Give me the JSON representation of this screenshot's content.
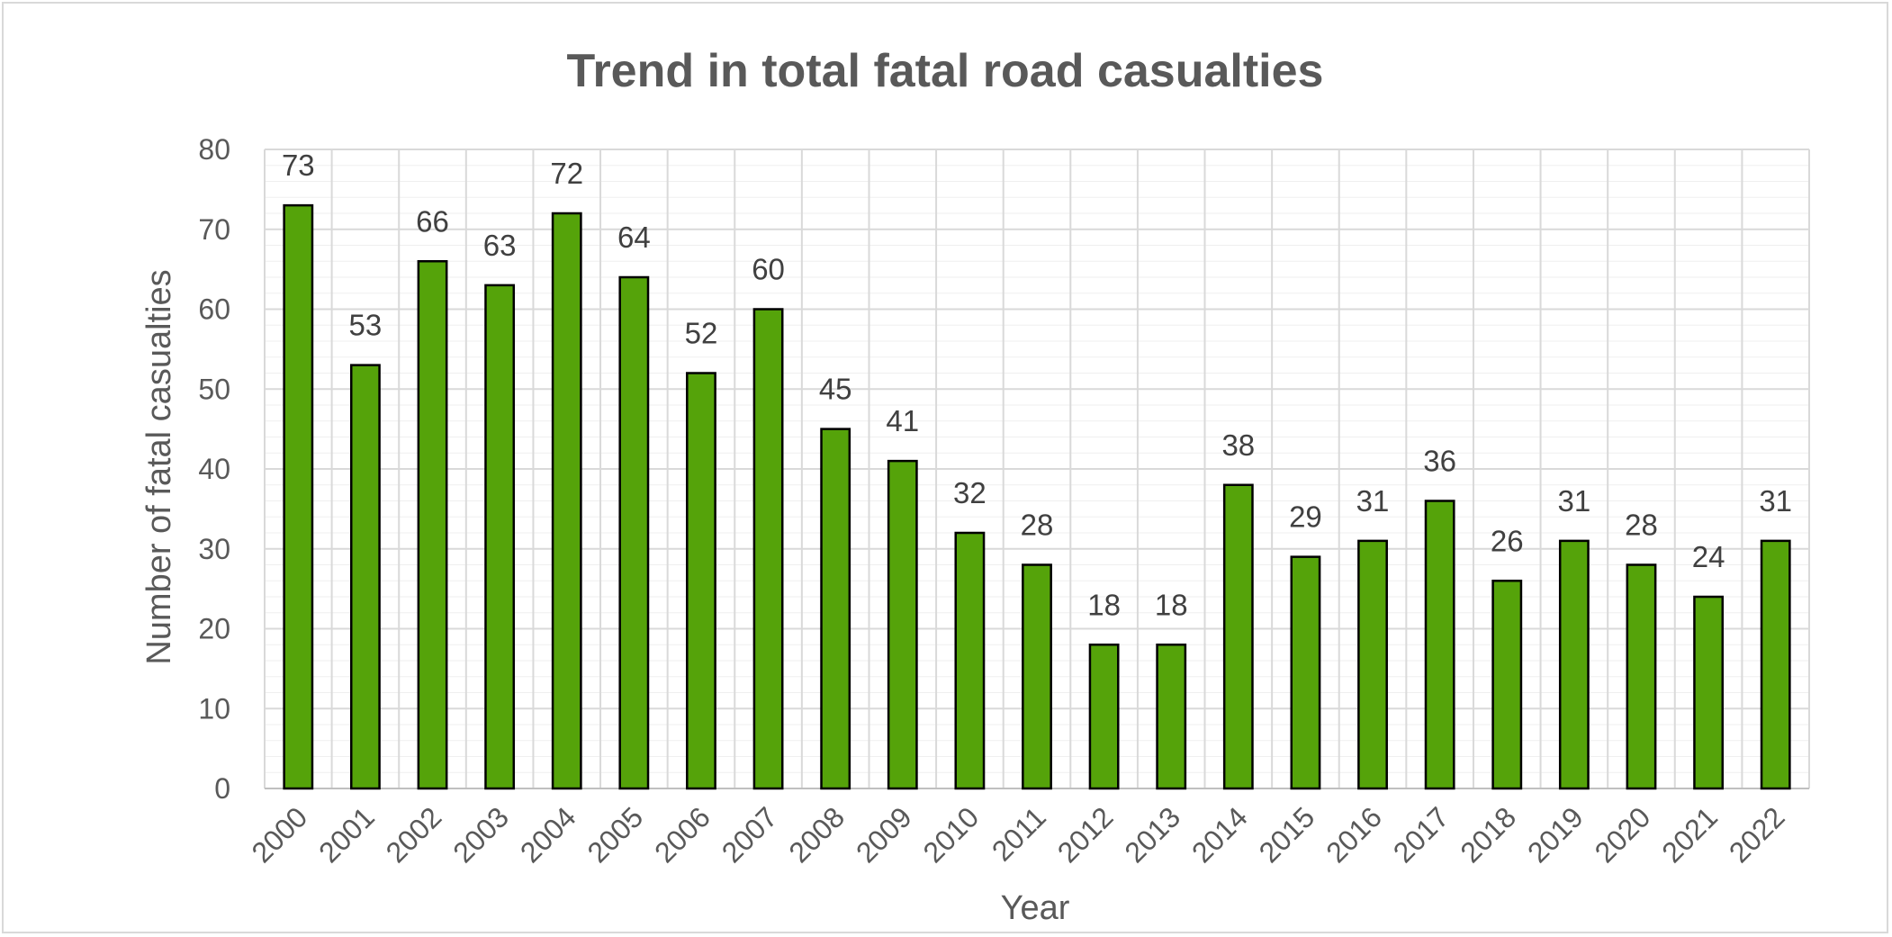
{
  "chart_data": {
    "type": "bar",
    "title": "Trend in total fatal road casualties",
    "xlabel": "Year",
    "ylabel": "Number of fatal casualties",
    "categories": [
      "2000",
      "2001",
      "2002",
      "2003",
      "2004",
      "2005",
      "2006",
      "2007",
      "2008",
      "2009",
      "2010",
      "2011",
      "2012",
      "2013",
      "2014",
      "2015",
      "2016",
      "2017",
      "2018",
      "2019",
      "2020",
      "2021",
      "2022"
    ],
    "values": [
      73,
      53,
      66,
      63,
      72,
      64,
      52,
      60,
      45,
      41,
      32,
      28,
      18,
      18,
      38,
      29,
      31,
      36,
      26,
      31,
      28,
      24,
      31
    ],
    "ylim": [
      0,
      80
    ],
    "yticks": [
      0,
      10,
      20,
      30,
      40,
      50,
      60,
      70,
      80
    ],
    "grid": true,
    "minor_grid": true,
    "legend": "none",
    "data_labels": true,
    "bar_color": "#55a30a",
    "bar_edge_color": "#000000"
  }
}
